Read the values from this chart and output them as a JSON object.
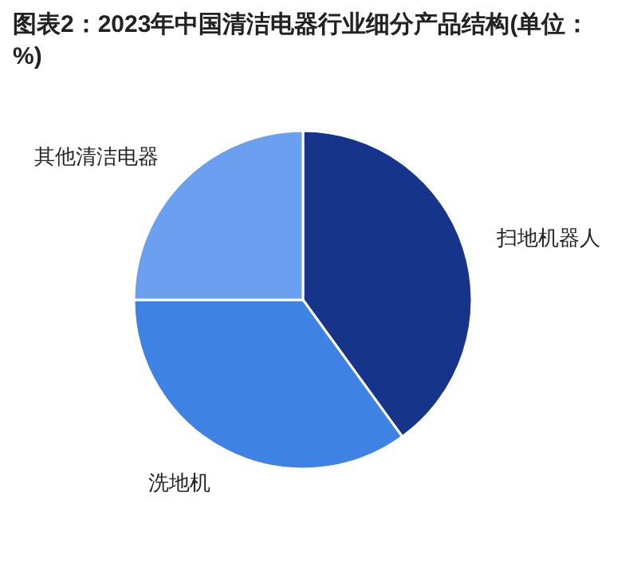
{
  "chart_data": {
    "type": "pie",
    "title": "图表2：2023年中国清洁电器行业细分产品结构(单位：%)",
    "categories": [
      "扫地机器人",
      "洗地机",
      "其他清洁电器"
    ],
    "values": [
      40,
      35,
      25
    ],
    "colors": [
      "#16348a",
      "#3e82e3",
      "#6b9ff0"
    ]
  }
}
